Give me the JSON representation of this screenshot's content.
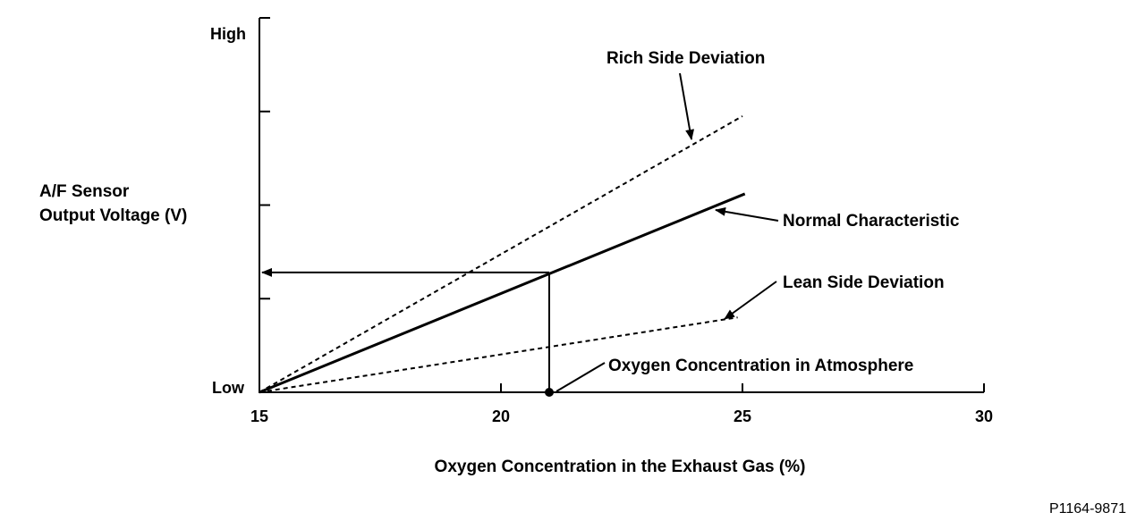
{
  "chart_data": {
    "type": "line",
    "title": "",
    "xlabel": "Oxygen Concentration in the Exhaust Gas (%)",
    "ylabel": [
      "A/F Sensor",
      "Output Voltage (V)"
    ],
    "xlim": [
      15,
      30
    ],
    "x_ticks": [
      "15",
      "20",
      "25",
      "30"
    ],
    "y_ticks": [
      "Low",
      "High"
    ],
    "ylim": [
      0,
      4
    ],
    "grid": false,
    "series": [
      {
        "name": "Rich Side Deviation",
        "style": "dashed",
        "x": [
          15,
          25
        ],
        "y": [
          0,
          2.95
        ]
      },
      {
        "name": "Normal Characteristic",
        "style": "solid",
        "x": [
          15,
          25.05
        ],
        "y": [
          0,
          2.12
        ]
      },
      {
        "name": "Lean Side Deviation",
        "style": "dashed",
        "x": [
          15,
          24.9
        ],
        "y": [
          0,
          0.8
        ]
      }
    ],
    "reference": {
      "label": "Oxygen Concentration in Atmosphere",
      "x": 21.0,
      "y": 1.28
    },
    "figure_code": "P1164-9871"
  }
}
